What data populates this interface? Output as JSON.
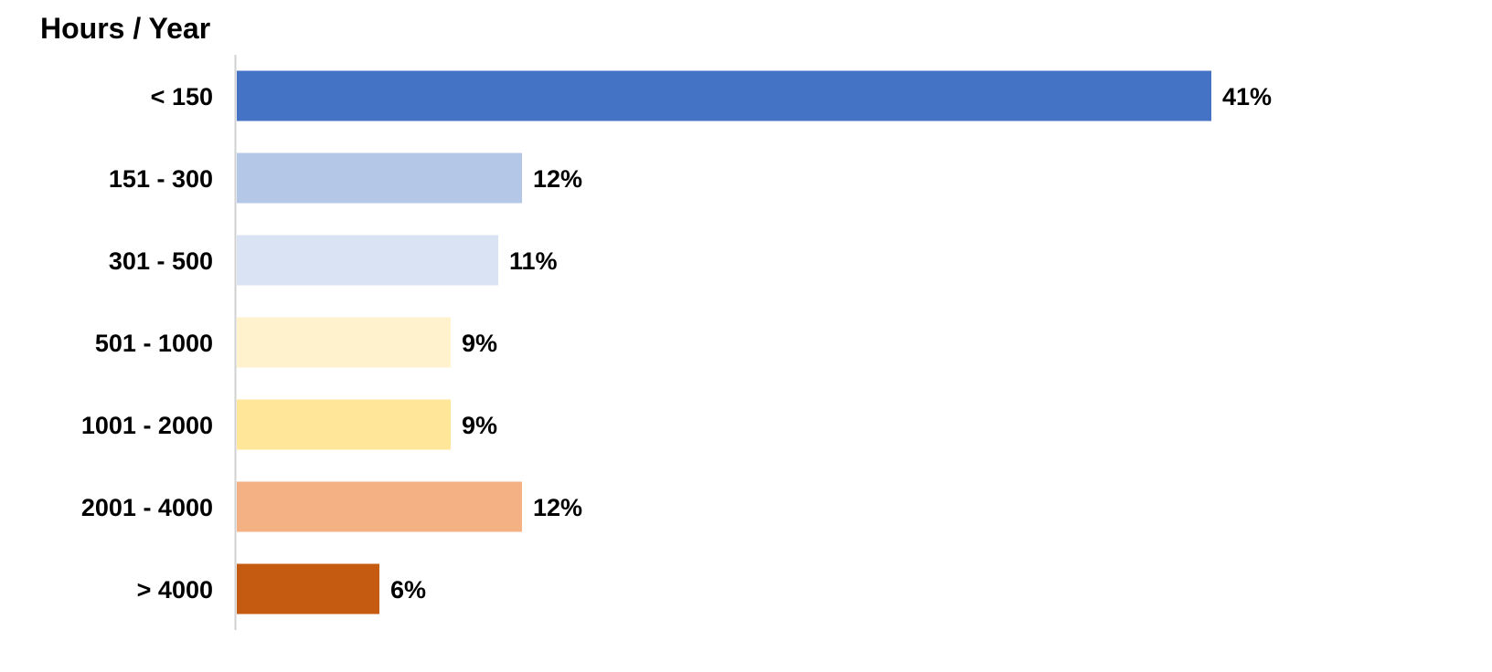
{
  "chart_data": {
    "type": "bar",
    "orientation": "horizontal",
    "title": "Hours / Year",
    "categories": [
      "< 150",
      "151 - 300",
      "301 - 500",
      "501 - 1000",
      "1001 - 2000",
      "2001 - 4000",
      "> 4000"
    ],
    "values": [
      41,
      12,
      11,
      9,
      9,
      12,
      6
    ],
    "value_labels": [
      "41%",
      "12%",
      "11%",
      "9%",
      "9%",
      "12%",
      "6%"
    ],
    "value_unit": "%",
    "colors": [
      "#4472C4",
      "#B4C7E7",
      "#DAE3F3",
      "#FFF2CC",
      "#FFE699",
      "#F4B183",
      "#C55A11"
    ],
    "xlim": [
      0,
      41
    ],
    "grid": false,
    "legend": "none"
  }
}
